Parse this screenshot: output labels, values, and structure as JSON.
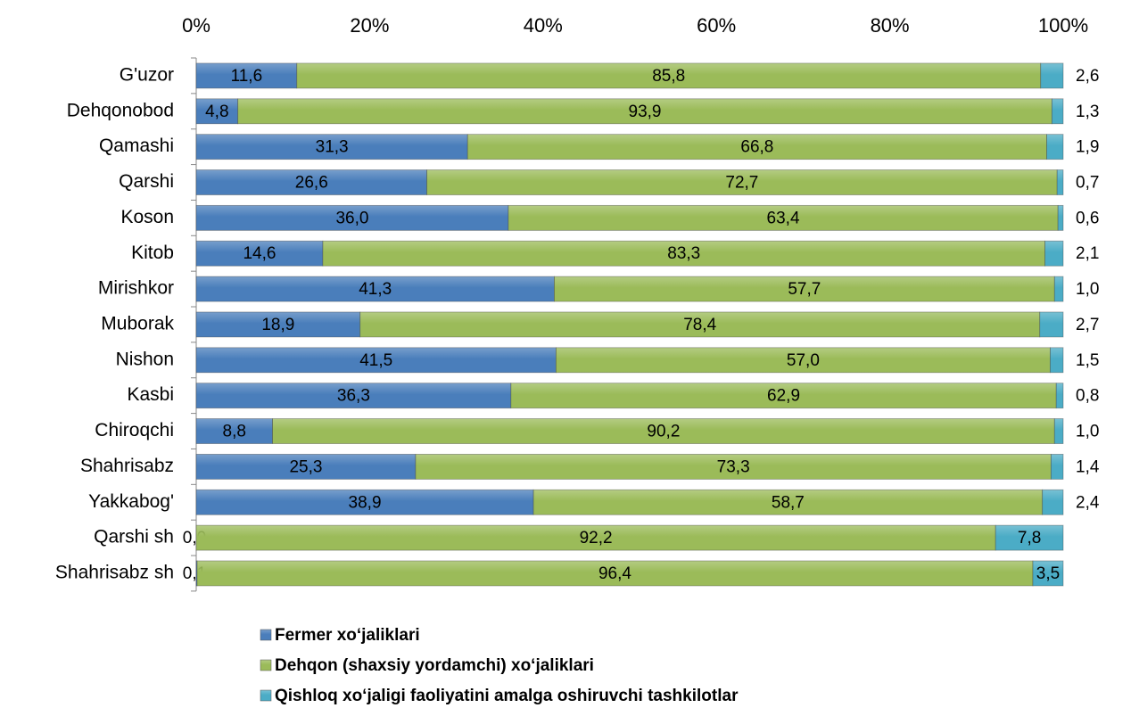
{
  "chart_data": {
    "type": "stacked-bar-horizontal",
    "categories": [
      "G'uzor",
      "Dehqonobod",
      "Qamashi",
      "Qarshi",
      "Koson",
      "Kitob",
      "Mirishkor",
      "Muborak",
      "Nishon",
      "Kasbi",
      "Chiroqchi",
      "Shahrisabz",
      "Yakkabog'",
      "Qarshi sh",
      "Shahrisabz sh"
    ],
    "series": [
      {
        "name": "Fermer xoʻjaliklari",
        "color": "#4a7ebb",
        "values": [
          11.6,
          4.8,
          31.3,
          26.6,
          36.0,
          14.6,
          41.3,
          18.9,
          41.5,
          36.3,
          8.8,
          25.3,
          38.9,
          0.0,
          0.1
        ],
        "value_labels": [
          "11,6",
          "4,8",
          "31,3",
          "26,6",
          "36,0",
          "14,6",
          "41,3",
          "18,9",
          "41,5",
          "36,3",
          "8,8",
          "25,3",
          "38,9",
          "0,0",
          "0,1"
        ]
      },
      {
        "name": "Dehqon (shaxsiy yordamchi) xoʻjaliklari",
        "color": "#9bbb59",
        "values": [
          85.8,
          93.9,
          66.8,
          72.7,
          63.4,
          83.3,
          57.7,
          78.4,
          57.0,
          62.9,
          90.2,
          73.3,
          58.7,
          92.2,
          96.4
        ],
        "value_labels": [
          "85,8",
          "93,9",
          "66,8",
          "72,7",
          "63,4",
          "83,3",
          "57,7",
          "78,4",
          "57,0",
          "62,9",
          "90,2",
          "73,3",
          "58,7",
          "92,2",
          "96,4"
        ]
      },
      {
        "name": "Qishloq xoʻjaligi faoliyatini amalga oshiruvchi tashkilotlar",
        "color": "#4bacc6",
        "values": [
          2.6,
          1.3,
          1.9,
          0.7,
          0.6,
          2.1,
          1.0,
          2.7,
          1.5,
          0.8,
          1.0,
          1.4,
          2.4,
          7.8,
          3.5
        ],
        "value_labels": [
          "2,6",
          "1,3",
          "1,9",
          "0,7",
          "0,6",
          "2,1",
          "1,0",
          "2,7",
          "1,5",
          "0,8",
          "1,0",
          "1,4",
          "2,4",
          "7,8",
          "3,5"
        ]
      }
    ],
    "xlim": [
      0,
      100
    ],
    "xticks": [
      {
        "value": 0,
        "label": "0%"
      },
      {
        "value": 20,
        "label": "20%"
      },
      {
        "value": 40,
        "label": "40%"
      },
      {
        "value": 60,
        "label": "60%"
      },
      {
        "value": 80,
        "label": "80%"
      },
      {
        "value": 100,
        "label": "100%"
      }
    ],
    "legend": "bottom"
  }
}
